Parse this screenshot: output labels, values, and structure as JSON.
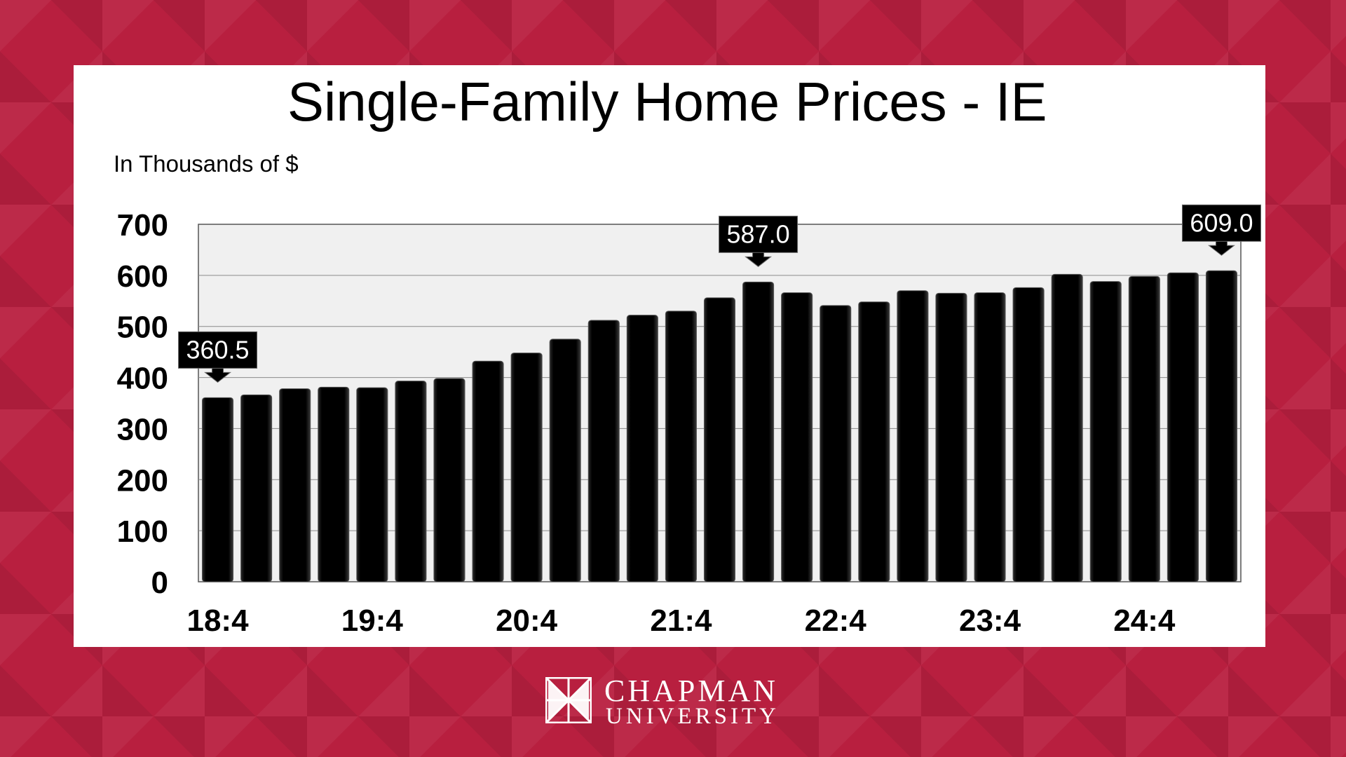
{
  "chart_data": {
    "type": "bar",
    "title": "Single-Family Home Prices - IE",
    "units_label": "In Thousands of $",
    "ylim": [
      0,
      700
    ],
    "yticks": [
      "0",
      "100",
      "200",
      "300",
      "400",
      "500",
      "600",
      "700"
    ],
    "x_tick_labels": [
      "18:4",
      "19:4",
      "20:4",
      "21:4",
      "22:4",
      "23:4",
      "24:4"
    ],
    "x_tick_every": 4,
    "values": [
      360.5,
      366,
      378,
      381,
      380,
      393,
      398,
      432,
      448,
      475,
      512,
      522,
      530,
      556,
      587,
      566,
      541,
      548,
      570,
      565,
      566,
      576,
      602,
      588,
      598,
      605,
      609.0
    ],
    "callouts": [
      {
        "index": 0,
        "label": "360.5"
      },
      {
        "index": 14,
        "label": "587.0"
      },
      {
        "index": 26,
        "label": "609.0"
      }
    ],
    "grid": true,
    "bar_color": "#0d0d0d",
    "plot_background": "#f0f0f0"
  },
  "footer": {
    "name": "CHAPMAN",
    "sub": "UNIVERSITY"
  },
  "colors": {
    "background": "#b81f3f",
    "panel": "#ffffff"
  }
}
